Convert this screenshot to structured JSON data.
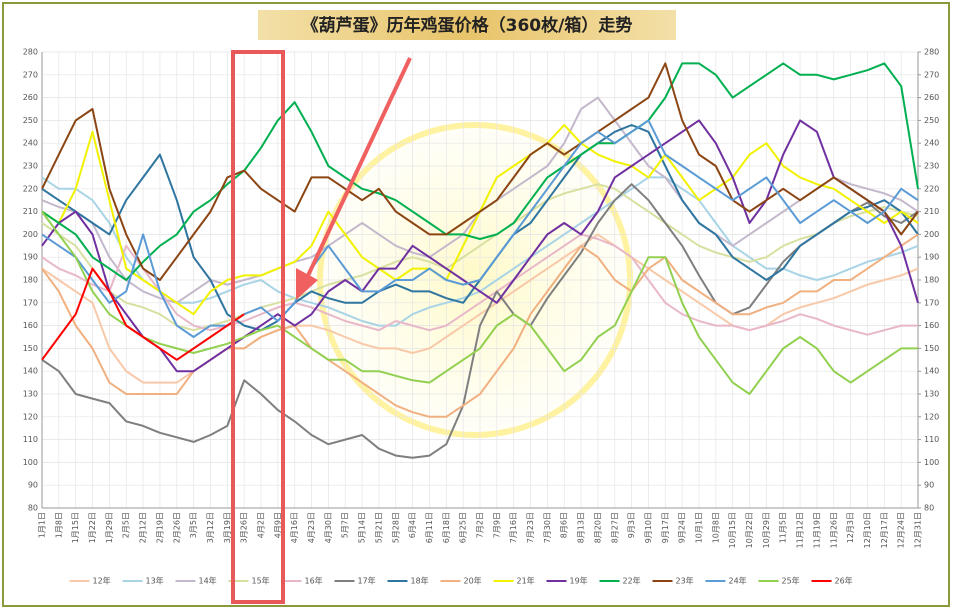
{
  "chart_data": {
    "type": "line",
    "title": "《葫芦蛋》历年鸡蛋价格（360枚/箱）走势",
    "categories": [
      "1月1日",
      "1月8日",
      "1月15日",
      "1月22日",
      "1月29日",
      "2月5日",
      "2月12日",
      "2月19日",
      "2月26日",
      "3月5日",
      "3月12日",
      "3月19日",
      "3月26日",
      "4月2日",
      "4月9日",
      "4月16日",
      "4月23日",
      "4月30日",
      "5月7日",
      "5月14日",
      "5月21日",
      "5月28日",
      "6月4日",
      "6月11日",
      "6月18日",
      "6月25日",
      "7月2日",
      "7月9日",
      "7月16日",
      "7月23日",
      "7月30日",
      "8月6日",
      "8月13日",
      "8月20日",
      "8月27日",
      "9月3日",
      "9月10日",
      "9月17日",
      "9月24日",
      "10月1日",
      "10月8日",
      "10月15日",
      "10月22日",
      "10月29日",
      "11月5日",
      "11月12日",
      "11月19日",
      "11月26日",
      "12月3日",
      "12月10日",
      "12月17日",
      "12月24日",
      "12月31日"
    ],
    "ylim": [
      80,
      280
    ],
    "yticks": [
      80,
      90,
      100,
      110,
      120,
      130,
      140,
      150,
      160,
      170,
      180,
      190,
      200,
      210,
      220,
      230,
      240,
      250,
      260,
      270,
      280
    ],
    "y2lim": [
      80,
      280
    ],
    "y2ticks": [
      80,
      90,
      100,
      110,
      120,
      130,
      140,
      150,
      160,
      170,
      180,
      190,
      200,
      210,
      220,
      230,
      240,
      250,
      260,
      270,
      280
    ],
    "grid": true,
    "legend": "bottom",
    "series": [
      {
        "name": "12年",
        "color": "#f8c9a8",
        "values": [
          185,
          180,
          175,
          170,
          150,
          140,
          135,
          135,
          135,
          140,
          145,
          150,
          150,
          155,
          158,
          160,
          160,
          158,
          155,
          152,
          150,
          150,
          148,
          150,
          155,
          160,
          165,
          170,
          175,
          180,
          185,
          190,
          195,
          200,
          195,
          190,
          185,
          180,
          175,
          170,
          165,
          160,
          158,
          160,
          165,
          168,
          170,
          172,
          175,
          178,
          180,
          182,
          185
        ]
      },
      {
        "name": "13年",
        "color": "#a8d4e6",
        "values": [
          225,
          220,
          220,
          215,
          205,
          190,
          180,
          175,
          170,
          170,
          172,
          175,
          178,
          180,
          175,
          172,
          170,
          168,
          165,
          162,
          160,
          160,
          165,
          168,
          170,
          172,
          175,
          180,
          185,
          190,
          195,
          200,
          205,
          210,
          215,
          220,
          225,
          225,
          220,
          215,
          205,
          195,
          190,
          185,
          185,
          182,
          180,
          182,
          185,
          188,
          190,
          192,
          195
        ]
      },
      {
        "name": "14年",
        "color": "#c4b8cc",
        "values": [
          215,
          212,
          210,
          205,
          190,
          180,
          175,
          172,
          170,
          175,
          180,
          178,
          180,
          182,
          185,
          188,
          190,
          195,
          200,
          205,
          200,
          195,
          192,
          190,
          195,
          200,
          210,
          215,
          220,
          225,
          230,
          240,
          255,
          260,
          250,
          240,
          230,
          225,
          215,
          205,
          200,
          195,
          200,
          205,
          210,
          215,
          220,
          225,
          222,
          220,
          218,
          215,
          210
        ]
      },
      {
        "name": "15年",
        "color": "#d8e0a0",
        "values": [
          205,
          200,
          195,
          185,
          175,
          170,
          168,
          165,
          160,
          158,
          160,
          162,
          165,
          168,
          170,
          172,
          175,
          178,
          180,
          182,
          185,
          188,
          190,
          188,
          185,
          190,
          195,
          200,
          205,
          210,
          215,
          218,
          220,
          222,
          220,
          215,
          210,
          205,
          200,
          195,
          192,
          190,
          188,
          190,
          195,
          198,
          200,
          205,
          208,
          210,
          212,
          210,
          208
        ]
      },
      {
        "name": "16年",
        "color": "#e8b8c8",
        "values": [
          190,
          185,
          182,
          178,
          175,
          195,
          185,
          175,
          165,
          160,
          158,
          160,
          162,
          165,
          168,
          170,
          168,
          165,
          162,
          160,
          158,
          162,
          160,
          158,
          160,
          165,
          170,
          175,
          180,
          185,
          190,
          195,
          200,
          198,
          195,
          190,
          180,
          170,
          165,
          162,
          160,
          160,
          158,
          160,
          162,
          165,
          163,
          160,
          158,
          156,
          158,
          160,
          160
        ]
      },
      {
        "name": "17年",
        "color": "#7f7f7f",
        "values": [
          145,
          140,
          130,
          128,
          126,
          118,
          116,
          113,
          111,
          109,
          112,
          116,
          136,
          130,
          123,
          118,
          112,
          108,
          110,
          112,
          106,
          103,
          102,
          103,
          108,
          125,
          160,
          175,
          165,
          160,
          172,
          182,
          192,
          205,
          215,
          222,
          215,
          205,
          195,
          182,
          170,
          165,
          168,
          178,
          188,
          195,
          200,
          205,
          210,
          214,
          208,
          205,
          210
        ]
      },
      {
        "name": "18年",
        "color": "#2e75a0",
        "values": [
          220,
          215,
          210,
          205,
          200,
          215,
          225,
          235,
          215,
          190,
          180,
          165,
          160,
          158,
          162,
          170,
          175,
          172,
          170,
          170,
          175,
          178,
          175,
          175,
          172,
          170,
          180,
          190,
          200,
          205,
          215,
          225,
          235,
          240,
          245,
          248,
          245,
          230,
          215,
          205,
          200,
          190,
          185,
          180,
          185,
          195,
          200,
          205,
          210,
          212,
          215,
          210,
          200
        ]
      },
      {
        "name": "20年",
        "color": "#f0b080",
        "values": [
          185,
          175,
          160,
          150,
          135,
          130,
          130,
          130,
          130,
          140,
          145,
          150,
          150,
          155,
          158,
          160,
          150,
          145,
          140,
          135,
          130,
          125,
          122,
          120,
          120,
          125,
          130,
          140,
          150,
          165,
          175,
          185,
          195,
          190,
          180,
          175,
          185,
          190,
          180,
          175,
          170,
          165,
          165,
          168,
          170,
          175,
          175,
          180,
          180,
          185,
          190,
          195,
          200
        ]
      },
      {
        "name": "21年",
        "color": "#f2f200",
        "values": [
          210,
          205,
          220,
          245,
          215,
          185,
          180,
          175,
          170,
          165,
          175,
          180,
          182,
          182,
          185,
          188,
          195,
          210,
          200,
          190,
          185,
          180,
          185,
          185,
          180,
          195,
          210,
          225,
          230,
          235,
          240,
          248,
          240,
          235,
          232,
          230,
          225,
          235,
          225,
          215,
          220,
          225,
          235,
          240,
          230,
          225,
          222,
          220,
          215,
          210,
          205,
          210,
          205
        ]
      },
      {
        "name": "19年",
        "color": "#7030a0",
        "values": [
          195,
          205,
          210,
          200,
          175,
          165,
          155,
          150,
          140,
          140,
          145,
          150,
          155,
          160,
          165,
          160,
          165,
          175,
          180,
          175,
          185,
          185,
          195,
          190,
          185,
          180,
          175,
          170,
          180,
          190,
          200,
          205,
          200,
          210,
          225,
          230,
          235,
          240,
          245,
          250,
          240,
          225,
          205,
          215,
          235,
          250,
          245,
          225,
          220,
          215,
          210,
          195,
          170
        ]
      },
      {
        "name": "22年",
        "color": "#00b050",
        "values": [
          210,
          205,
          200,
          190,
          185,
          180,
          188,
          195,
          200,
          210,
          215,
          222,
          228,
          238,
          250,
          258,
          245,
          230,
          225,
          220,
          218,
          215,
          210,
          205,
          200,
          200,
          198,
          200,
          205,
          215,
          225,
          230,
          235,
          240,
          240,
          245,
          250,
          260,
          275,
          275,
          270,
          260,
          265,
          270,
          275,
          270,
          270,
          268,
          270,
          272,
          275,
          265,
          220
        ]
      },
      {
        "name": "23年",
        "color": "#8b4513",
        "values": [
          220,
          235,
          250,
          255,
          220,
          200,
          185,
          180,
          190,
          200,
          210,
          225,
          228,
          220,
          215,
          210,
          225,
          225,
          220,
          215,
          220,
          210,
          205,
          200,
          200,
          205,
          210,
          215,
          225,
          235,
          240,
          235,
          240,
          245,
          250,
          255,
          260,
          275,
          250,
          235,
          230,
          215,
          210,
          215,
          220,
          215,
          220,
          225,
          220,
          215,
          210,
          200,
          210
        ]
      },
      {
        "name": "24年",
        "color": "#5b9bd5",
        "values": [
          200,
          195,
          190,
          180,
          170,
          175,
          200,
          175,
          160,
          155,
          160,
          160,
          165,
          168,
          162,
          170,
          185,
          195,
          185,
          175,
          175,
          180,
          180,
          185,
          180,
          178,
          180,
          190,
          200,
          210,
          220,
          230,
          240,
          245,
          240,
          245,
          250,
          235,
          230,
          225,
          220,
          215,
          220,
          225,
          215,
          205,
          210,
          215,
          210,
          205,
          210,
          220,
          215
        ]
      },
      {
        "name": "25年",
        "color": "#92d050",
        "values": [
          210,
          200,
          190,
          175,
          165,
          160,
          155,
          152,
          150,
          148,
          150,
          152,
          155,
          158,
          160,
          155,
          150,
          145,
          145,
          140,
          140,
          138,
          136,
          135,
          140,
          145,
          150,
          160,
          165,
          160,
          150,
          140,
          145,
          155,
          160,
          175,
          190,
          190,
          170,
          155,
          145,
          135,
          130,
          140,
          150,
          155,
          150,
          140,
          135,
          140,
          145,
          150,
          150
        ]
      },
      {
        "name": "26年",
        "color": "#ff0000",
        "values": [
          145,
          155,
          165,
          185,
          175,
          160,
          155,
          150,
          145,
          150,
          155,
          160,
          165,
          null,
          null,
          null,
          null,
          null,
          null,
          null,
          null,
          null,
          null,
          null,
          null,
          null,
          null,
          null,
          null,
          null,
          null,
          null,
          null,
          null,
          null,
          null,
          null,
          null,
          null,
          null,
          null,
          null,
          null,
          null,
          null,
          null,
          null,
          null,
          null,
          null,
          null,
          null,
          null
        ]
      }
    ]
  }
}
